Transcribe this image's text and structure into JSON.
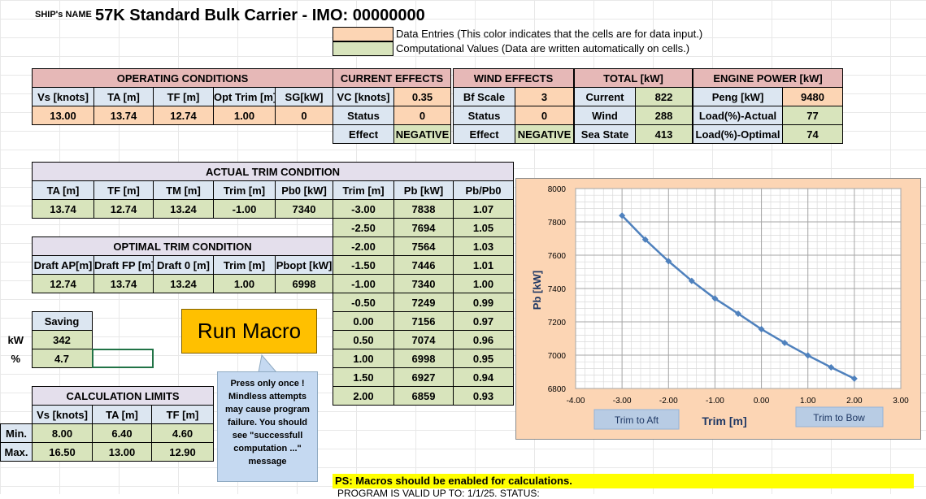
{
  "header": {
    "ship_label": "SHIP's NAME",
    "ship_title": "57K Standard Bulk Carrier - IMO: 00000000"
  },
  "legend": {
    "entry_text": "Data Entries (This color indicates that the cells are for data input.)",
    "computed_text": "Computational Values (Data are written automatically on cells.)",
    "entry_color": "#fcd5b4",
    "computed_color": "#d8e4bc"
  },
  "operating": {
    "title": "OPERATING CONDITIONS",
    "headers": [
      "Vs [knots]",
      "TA [m]",
      "TF [m]",
      "Opt Trim [m]",
      "SG[kW]"
    ],
    "values": [
      "13.00",
      "13.74",
      "12.74",
      "1.00",
      "0"
    ]
  },
  "current": {
    "title": "CURRENT EFFECTS",
    "vc_label": "VC [knots]",
    "vc_value": "0.35",
    "status_label": "Status",
    "status_value": "0",
    "effect_label": "Effect",
    "effect_value": "NEGATIVE"
  },
  "wind": {
    "title": "WIND EFFECTS",
    "bf_label": "Bf Scale",
    "bf_value": "3",
    "status_label": "Status",
    "status_value": "0",
    "effect_label": "Effect",
    "effect_value": "NEGATIVE"
  },
  "total": {
    "title": "TOTAL [kW]",
    "rows": [
      {
        "label": "Current",
        "value": "822"
      },
      {
        "label": "Wind",
        "value": "288"
      },
      {
        "label": "Sea State",
        "value": "413"
      }
    ]
  },
  "engine": {
    "title": "ENGINE POWER [kW]",
    "rows": [
      {
        "label": "Peng [kW]",
        "value": "9480"
      },
      {
        "label": "Load(%)-Actual",
        "value": "77"
      },
      {
        "label": "Load(%)-Optimal",
        "value": "74"
      }
    ]
  },
  "actual_trim": {
    "title": "ACTUAL TRIM CONDITION",
    "headers": [
      "TA [m]",
      "TF [m]",
      "TM [m]",
      "Trim [m]",
      "Pb0 [kW]"
    ],
    "values": [
      "13.74",
      "12.74",
      "13.24",
      "-1.00",
      "7340"
    ]
  },
  "optimal_trim": {
    "title": "OPTIMAL TRIM CONDITION",
    "headers": [
      "Draft AP[m]",
      "Draft FP [m]",
      "Draft 0 [m]",
      "Trim [m]",
      "Pbopt [kW]"
    ],
    "values": [
      "12.74",
      "13.74",
      "13.24",
      "1.00",
      "6998"
    ]
  },
  "trim_table": {
    "headers": [
      "Trim [m]",
      "Pb [kW]",
      "Pb/Pb0"
    ],
    "rows": [
      [
        "-3.00",
        "7838",
        "1.07"
      ],
      [
        "-2.50",
        "7694",
        "1.05"
      ],
      [
        "-2.00",
        "7564",
        "1.03"
      ],
      [
        "-1.50",
        "7446",
        "1.01"
      ],
      [
        "-1.00",
        "7340",
        "1.00"
      ],
      [
        "-0.50",
        "7249",
        "0.99"
      ],
      [
        "0.00",
        "7156",
        "0.97"
      ],
      [
        "0.50",
        "7074",
        "0.96"
      ],
      [
        "1.00",
        "6998",
        "0.95"
      ],
      [
        "1.50",
        "6927",
        "0.94"
      ],
      [
        "2.00",
        "6859",
        "0.93"
      ]
    ]
  },
  "saving": {
    "title": "Saving",
    "kw_label": "kW",
    "kw_value": "342",
    "pct_label": "%",
    "pct_value": "4.7"
  },
  "macro": {
    "button_label": "Run Macro",
    "note": "Press only once ! Mindless attempts may cause program failure. You should see \"successfull computation ...\" message"
  },
  "limits": {
    "title": "CALCULATION LIMITS",
    "headers": [
      "Vs [knots]",
      "TA [m]",
      "TF [m]"
    ],
    "rows": [
      {
        "label": "Min.",
        "values": [
          "8.00",
          "6.40",
          "4.60"
        ]
      },
      {
        "label": "Max.",
        "values": [
          "16.50",
          "13.00",
          "12.90"
        ]
      }
    ]
  },
  "footer": {
    "ps_text": "PS: Macros should be enabled for calculations.",
    "validity_text": "PROGRAM IS VALID UP TO: 1/1/25. STATUS:"
  },
  "chart_data": {
    "type": "line",
    "xlabel": "Trim [m]",
    "ylabel": "Pb [kW]",
    "x": [
      -3.0,
      -2.5,
      -2.0,
      -1.5,
      -1.0,
      -0.5,
      0.0,
      0.5,
      1.0,
      1.5,
      2.0
    ],
    "series": [
      {
        "values": [
          7838,
          7694,
          7564,
          7446,
          7340,
          7249,
          7156,
          7074,
          6998,
          6927,
          6859
        ]
      }
    ],
    "xlim": [
      -4.0,
      3.0
    ],
    "ylim": [
      6800,
      8000
    ],
    "xticks": [
      "-4.00",
      "-3.00",
      "-2.00",
      "-1.00",
      "0.00",
      "1.00",
      "2.00",
      "3.00"
    ],
    "yticks": [
      "6800",
      "7000",
      "7200",
      "7400",
      "7600",
      "7800",
      "8000"
    ],
    "grid": true,
    "aft_label": "Trim to Aft",
    "bow_label": "Trim to Bow",
    "line_color": "#4f81bd",
    "background": "#fcd5b4"
  }
}
